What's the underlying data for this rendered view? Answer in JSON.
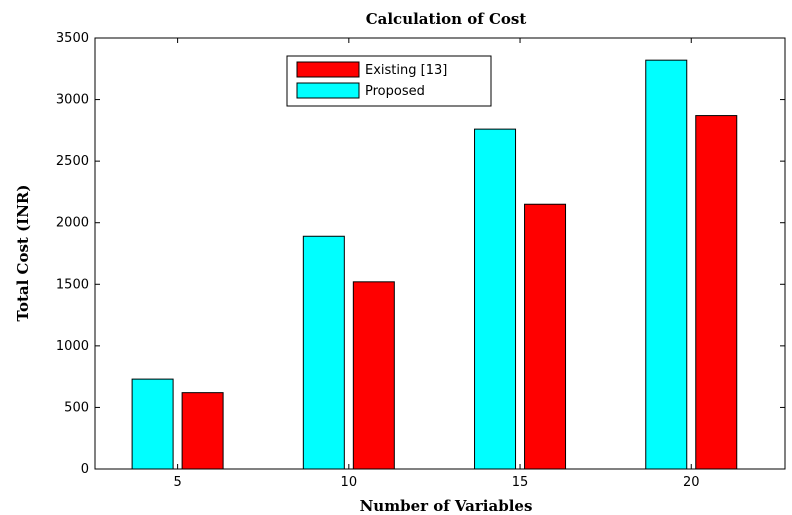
{
  "chart_data": {
    "type": "bar",
    "title": "Calculation of Cost",
    "xlabel": "Number of Variables",
    "ylabel": "Total Cost (INR)",
    "categories": [
      "5",
      "10",
      "15",
      "20"
    ],
    "ylim": [
      0,
      3500
    ],
    "yticks": [
      0,
      500,
      1000,
      1500,
      2000,
      2500,
      3000,
      3500
    ],
    "grid": false,
    "legend_position": "top-center",
    "series": [
      {
        "name": "Proposed",
        "color": "#00ffff",
        "values": [
          730,
          1890,
          2760,
          3320
        ]
      },
      {
        "name": "Existing [13]",
        "color": "#ff0000",
        "values": [
          620,
          1520,
          2150,
          2870
        ]
      }
    ],
    "legend_order": [
      "Existing [13]",
      "Proposed"
    ]
  }
}
